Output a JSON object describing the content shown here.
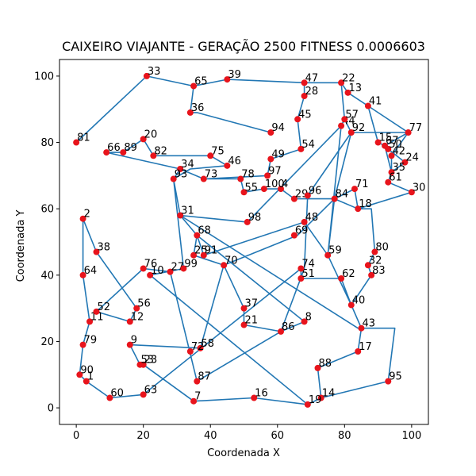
{
  "chart_data": {
    "type": "scatter",
    "title": "CAIXEIRO VIAJANTE - GERAÇÃO 2500 FITNESS 0.0006603",
    "xlabel": "Coordenada X",
    "ylabel": "Coordenada Y",
    "xlim": [
      -5,
      105
    ],
    "ylim": [
      -5,
      105
    ],
    "xticks": [
      0,
      20,
      40,
      60,
      80,
      100
    ],
    "yticks": [
      0,
      20,
      40,
      60,
      80,
      100
    ],
    "grid": false,
    "colors": {
      "point": "#e8141c",
      "line": "#2277b4"
    },
    "points": [
      {
        "label": "1",
        "x": 3,
        "y": 8
      },
      {
        "label": "2",
        "x": 2,
        "y": 57
      },
      {
        "label": "4",
        "x": 61,
        "y": 66
      },
      {
        "label": "7",
        "x": 35,
        "y": 2
      },
      {
        "label": "8",
        "x": 68,
        "y": 26
      },
      {
        "label": "9",
        "x": 16,
        "y": 19
      },
      {
        "label": "10",
        "x": 22,
        "y": 40
      },
      {
        "label": "11",
        "x": 4,
        "y": 26
      },
      {
        "label": "12",
        "x": 16,
        "y": 26
      },
      {
        "label": "13",
        "x": 81,
        "y": 95
      },
      {
        "label": "14",
        "x": 73,
        "y": 3
      },
      {
        "label": "15",
        "x": 90,
        "y": 80
      },
      {
        "label": "16",
        "x": 53,
        "y": 3
      },
      {
        "label": "17",
        "x": 84,
        "y": 17
      },
      {
        "label": "18",
        "x": 84,
        "y": 60
      },
      {
        "label": "19",
        "x": 69,
        "y": 1
      },
      {
        "label": "20",
        "x": 20,
        "y": 81
      },
      {
        "label": "21",
        "x": 50,
        "y": 25
      },
      {
        "label": "22",
        "x": 79,
        "y": 98
      },
      {
        "label": "23",
        "x": 20,
        "y": 13
      },
      {
        "label": "24",
        "x": 98,
        "y": 74
      },
      {
        "label": "25",
        "x": 35,
        "y": 46
      },
      {
        "label": "27",
        "x": 28,
        "y": 41
      },
      {
        "label": "28",
        "x": 68,
        "y": 94
      },
      {
        "label": "29",
        "x": 65,
        "y": 63
      },
      {
        "label": "30",
        "x": 100,
        "y": 65
      },
      {
        "label": "31",
        "x": 31,
        "y": 58
      },
      {
        "label": "32",
        "x": 87,
        "y": 43
      },
      {
        "label": "33",
        "x": 21,
        "y": 100
      },
      {
        "label": "34",
        "x": 31,
        "y": 72
      },
      {
        "label": "35",
        "x": 94,
        "y": 71
      },
      {
        "label": "36",
        "x": 34,
        "y": 89
      },
      {
        "label": "37",
        "x": 50,
        "y": 30
      },
      {
        "label": "38",
        "x": 6,
        "y": 47
      },
      {
        "label": "39",
        "x": 45,
        "y": 99
      },
      {
        "label": "40",
        "x": 82,
        "y": 31
      },
      {
        "label": "41",
        "x": 87,
        "y": 91
      },
      {
        "label": "42",
        "x": 94,
        "y": 76
      },
      {
        "label": "43",
        "x": 85,
        "y": 24
      },
      {
        "label": "44",
        "x": 79,
        "y": 85
      },
      {
        "label": "45",
        "x": 66,
        "y": 87
      },
      {
        "label": "46",
        "x": 45,
        "y": 73
      },
      {
        "label": "47",
        "x": 68,
        "y": 98
      },
      {
        "label": "48",
        "x": 68,
        "y": 56
      },
      {
        "label": "49",
        "x": 58,
        "y": 75
      },
      {
        "label": "50",
        "x": 93,
        "y": 78
      },
      {
        "label": "51",
        "x": 67,
        "y": 39
      },
      {
        "label": "52",
        "x": 6,
        "y": 29
      },
      {
        "label": "53",
        "x": 19,
        "y": 13
      },
      {
        "label": "54",
        "x": 67,
        "y": 78
      },
      {
        "label": "55",
        "x": 50,
        "y": 65
      },
      {
        "label": "56",
        "x": 18,
        "y": 30
      },
      {
        "label": "57",
        "x": 80,
        "y": 87
      },
      {
        "label": "58",
        "x": 37,
        "y": 18
      },
      {
        "label": "59",
        "x": 75,
        "y": 46
      },
      {
        "label": "60",
        "x": 10,
        "y": 3
      },
      {
        "label": "61",
        "x": 93,
        "y": 68
      },
      {
        "label": "62",
        "x": 79,
        "y": 39
      },
      {
        "label": "63",
        "x": 20,
        "y": 4
      },
      {
        "label": "64",
        "x": 2,
        "y": 40
      },
      {
        "label": "65",
        "x": 35,
        "y": 97
      },
      {
        "label": "66",
        "x": 9,
        "y": 77
      },
      {
        "label": "67",
        "x": 92,
        "y": 79
      },
      {
        "label": "68",
        "x": 36,
        "y": 52
      },
      {
        "label": "69",
        "x": 65,
        "y": 52
      },
      {
        "label": "70",
        "x": 44,
        "y": 43
      },
      {
        "label": "71",
        "x": 83,
        "y": 66
      },
      {
        "label": "72",
        "x": 34,
        "y": 17
      },
      {
        "label": "73",
        "x": 38,
        "y": 69
      },
      {
        "label": "74",
        "x": 67,
        "y": 42
      },
      {
        "label": "75",
        "x": 40,
        "y": 76
      },
      {
        "label": "76",
        "x": 20,
        "y": 42
      },
      {
        "label": "77",
        "x": 99,
        "y": 83
      },
      {
        "label": "78",
        "x": 49,
        "y": 69
      },
      {
        "label": "79",
        "x": 2,
        "y": 19
      },
      {
        "label": "80",
        "x": 89,
        "y": 47
      },
      {
        "label": "81",
        "x": 0,
        "y": 80
      },
      {
        "label": "82",
        "x": 23,
        "y": 76
      },
      {
        "label": "83",
        "x": 88,
        "y": 40
      },
      {
        "label": "84",
        "x": 77,
        "y": 63
      },
      {
        "label": "86",
        "x": 61,
        "y": 23
      },
      {
        "label": "87",
        "x": 36,
        "y": 8
      },
      {
        "label": "88",
        "x": 72,
        "y": 12
      },
      {
        "label": "89",
        "x": 14,
        "y": 77
      },
      {
        "label": "90",
        "x": 1,
        "y": 10
      },
      {
        "label": "91",
        "x": 38,
        "y": 46
      },
      {
        "label": "92",
        "x": 82,
        "y": 83
      },
      {
        "label": "93",
        "x": 29,
        "y": 69
      },
      {
        "label": "94",
        "x": 58,
        "y": 83
      },
      {
        "label": "95",
        "x": 93,
        "y": 8
      },
      {
        "label": "96",
        "x": 69,
        "y": 64
      },
      {
        "label": "97",
        "x": 57,
        "y": 70
      },
      {
        "label": "98",
        "x": 51,
        "y": 56
      },
      {
        "label": "99",
        "x": 32,
        "y": 42
      },
      {
        "label": "100",
        "x": 56,
        "y": 66
      }
    ],
    "route": [
      [
        0,
        80
      ],
      [
        21,
        100
      ],
      [
        35,
        97
      ],
      [
        45,
        99
      ],
      [
        68,
        98
      ],
      [
        79,
        98
      ],
      [
        81,
        95
      ],
      [
        87,
        91
      ],
      [
        90,
        80
      ],
      [
        92,
        79
      ],
      [
        93,
        78
      ],
      [
        98,
        74
      ],
      [
        94,
        71
      ],
      [
        93,
        68
      ],
      [
        100,
        65
      ],
      [
        84,
        60
      ],
      [
        83,
        66
      ],
      [
        77,
        63
      ],
      [
        66,
        52
      ],
      [
        44,
        43
      ],
      [
        50,
        30
      ],
      [
        50,
        25
      ],
      [
        61,
        23
      ],
      [
        68,
        42
      ],
      [
        69,
        64
      ],
      [
        82,
        83
      ],
      [
        80,
        87
      ],
      [
        79,
        85
      ],
      [
        75,
        46
      ],
      [
        68,
        56
      ],
      [
        38,
        46
      ],
      [
        36,
        52
      ],
      [
        31,
        58
      ],
      [
        84,
        24
      ],
      [
        85,
        24
      ],
      [
        95,
        24
      ],
      [
        93,
        8
      ],
      [
        73,
        3
      ],
      [
        69,
        1
      ],
      [
        22,
        40
      ],
      [
        32,
        42
      ],
      [
        29,
        69
      ],
      [
        31,
        72
      ],
      [
        38,
        69
      ],
      [
        49,
        69
      ],
      [
        50,
        65
      ],
      [
        56,
        66
      ],
      [
        61,
        66
      ],
      [
        65,
        63
      ],
      [
        77,
        63
      ],
      [
        84,
        60
      ],
      [
        88,
        60
      ],
      [
        89,
        47
      ],
      [
        87,
        43
      ],
      [
        88,
        40
      ],
      [
        82,
        31
      ],
      [
        79,
        39
      ],
      [
        67,
        39
      ],
      [
        67,
        42
      ],
      [
        20,
        4
      ],
      [
        10,
        3
      ],
      [
        3,
        8
      ],
      [
        1,
        10
      ],
      [
        2,
        19
      ],
      [
        4,
        26
      ],
      [
        2,
        40
      ],
      [
        2,
        57
      ],
      [
        6,
        47
      ],
      [
        18,
        30
      ],
      [
        16,
        26
      ],
      [
        6,
        29
      ],
      [
        20,
        42
      ],
      [
        28,
        41
      ],
      [
        36,
        8
      ],
      [
        61,
        23
      ],
      [
        68,
        26
      ],
      [
        36,
        52
      ],
      [
        35,
        46
      ],
      [
        44,
        43
      ],
      [
        37,
        18
      ],
      [
        16,
        19
      ],
      [
        19,
        13
      ],
      [
        20,
        13
      ],
      [
        35,
        2
      ],
      [
        53,
        3
      ],
      [
        69,
        1
      ],
      [
        73,
        3
      ],
      [
        72,
        12
      ],
      [
        84,
        17
      ],
      [
        85,
        24
      ],
      [
        82,
        31
      ],
      [
        75,
        46
      ],
      [
        77,
        63
      ],
      [
        82,
        83
      ],
      [
        99,
        83
      ],
      [
        94,
        76
      ],
      [
        94,
        71
      ],
      [
        92,
        79
      ],
      [
        99,
        83
      ],
      [
        87,
        91
      ],
      [
        81,
        95
      ],
      [
        79,
        98
      ],
      [
        80,
        87
      ],
      [
        79,
        85
      ],
      [
        51,
        56
      ],
      [
        31,
        58
      ],
      [
        29,
        69
      ],
      [
        34,
        72
      ],
      [
        45,
        73
      ],
      [
        40,
        76
      ],
      [
        23,
        76
      ],
      [
        20,
        81
      ],
      [
        14,
        77
      ],
      [
        9,
        77
      ],
      [
        31,
        72
      ],
      [
        38,
        69
      ],
      [
        57,
        70
      ],
      [
        58,
        75
      ],
      [
        67,
        78
      ],
      [
        66,
        87
      ],
      [
        68,
        94
      ],
      [
        68,
        98
      ],
      [
        45,
        99
      ],
      [
        35,
        97
      ],
      [
        34,
        89
      ],
      [
        36,
        89
      ],
      [
        58,
        83
      ]
    ]
  }
}
